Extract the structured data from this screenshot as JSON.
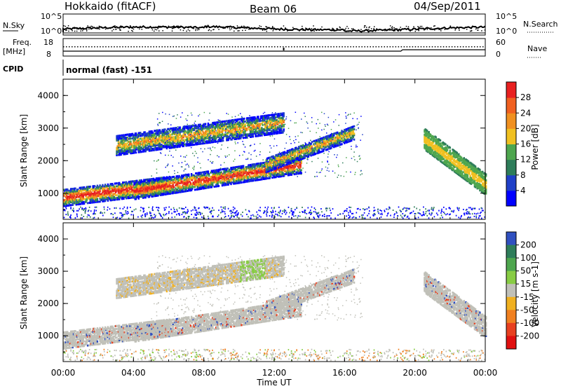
{
  "header": {
    "station": "Hokkaido (fitACF)",
    "beam": "Beam 06",
    "date": "04/Sep/2011"
  },
  "top_strip": {
    "nsky_label": "N.Sky",
    "nsearch_label": "N.Search",
    "nsky_ticks": [
      "10^5",
      "10^0"
    ],
    "nsearch_ticks": [
      "10^5",
      "10^0"
    ],
    "freq_label_line1": "Freq.",
    "freq_label_line2": "[MHz]",
    "freq_ticks": [
      "18",
      "8"
    ],
    "nave_label": "Nave",
    "nave_ticks": [
      "60",
      "0"
    ],
    "cpid_label": "CPID",
    "cpid_value": "normal (fast) -151"
  },
  "chart_data": [
    {
      "type": "heatmap",
      "panel": "power",
      "ylabel": "Slant Range [km]",
      "xlabel": "Time UT",
      "ylim": [
        200,
        4500
      ],
      "yticks": [
        "1000",
        "2000",
        "3000",
        "4000"
      ],
      "xticks": [
        "00:00",
        "04:00",
        "08:00",
        "12:00",
        "16:00",
        "20:00",
        "00:00"
      ],
      "colorbar": {
        "label": "Power [dB]",
        "ticks": [
          "4",
          "8",
          "12",
          "16",
          "20",
          "24",
          "28"
        ],
        "colors": [
          "#0000ff",
          "#2040c8",
          "#2e7d5a",
          "#4ea64e",
          "#f0c020",
          "#f09020",
          "#f06020",
          "#e82020"
        ]
      }
    },
    {
      "type": "heatmap",
      "panel": "velocity",
      "ylabel": "Slant Range [km]",
      "xlabel": "Time UT",
      "ylim": [
        200,
        4500
      ],
      "yticks": [
        "1000",
        "2000",
        "3000",
        "4000"
      ],
      "xticks": [
        "00:00",
        "04:00",
        "08:00",
        "12:00",
        "16:00",
        "20:00",
        "00:00"
      ],
      "colorbar": {
        "label": "Velocity [m s-1]",
        "ticks": [
          "200",
          "100",
          "50",
          "15",
          "-15",
          "-50",
          "-100",
          "-200"
        ],
        "colors": [
          "#3050c0",
          "#2e7d5a",
          "#4ea64e",
          "#88cc44",
          "#c0c0b8",
          "#f0b020",
          "#f08020",
          "#e84020",
          "#e01010"
        ]
      }
    }
  ]
}
